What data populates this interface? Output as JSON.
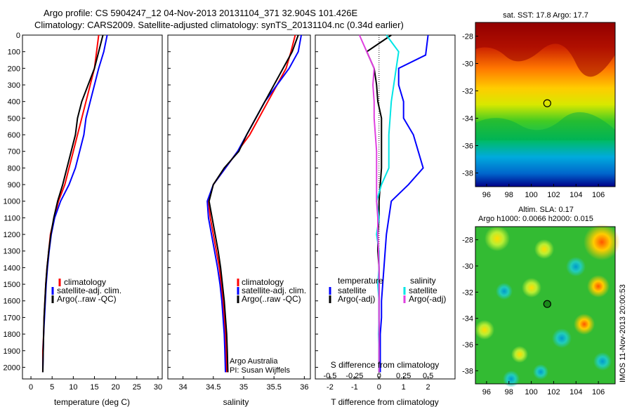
{
  "header": {
    "line1": "Argo profile: CS 5904247_12 04-Nov-2013 20131104_371 32.904S 101.426E",
    "line2": "Climatology: CARS2009. Satellite-adjusted climatology: synTS_20131104.nc (0.34d earlier)"
  },
  "side_text": "IMOS 11-Nov-2013 20:00:53",
  "colors": {
    "climatology": "#ff0000",
    "satellite": "#0000ff",
    "argo": "#000000",
    "salinity_satellite": "#00e5e5",
    "salinity_argo": "#e040e0"
  },
  "chart_data": [
    {
      "type": "line",
      "xlabel": "temperature (deg C)",
      "ylabel": "",
      "xlim": [
        -2,
        31
      ],
      "ylim": [
        2070,
        0
      ],
      "xticks": [
        "0",
        "5",
        "10",
        "15",
        "20",
        "25",
        "30"
      ],
      "yticks": [
        "0",
        "100",
        "200",
        "300",
        "400",
        "500",
        "600",
        "700",
        "800",
        "900",
        "1000",
        "1100",
        "1200",
        "1300",
        "1400",
        "1500",
        "1600",
        "1700",
        "1800",
        "1900",
        "2000"
      ],
      "legend": [
        "climatology",
        "satellite-adj. clim.",
        "Argo(..raw -QC)"
      ],
      "series": [
        {
          "name": "climatology",
          "x": [
            16,
            15.5,
            15,
            14,
            13,
            12,
            11,
            10,
            9,
            8,
            6.5,
            5.5,
            4.6,
            4.2,
            3.8,
            3.5,
            3.3,
            3.1,
            3.0,
            2.8,
            2.8
          ],
          "y": [
            0,
            100,
            200,
            300,
            400,
            500,
            600,
            700,
            800,
            900,
            1000,
            1100,
            1200,
            1300,
            1400,
            1500,
            1600,
            1700,
            1800,
            1900,
            2030
          ]
        },
        {
          "name": "satellite-adj. clim.",
          "x": [
            18,
            17.2,
            16,
            15,
            14,
            13,
            12.5,
            11.5,
            10.5,
            9,
            7,
            5.6,
            4.8,
            4.3,
            3.9,
            3.6,
            3.4,
            3.2,
            3.0,
            2.9,
            2.8
          ],
          "y": [
            0,
            100,
            200,
            300,
            400,
            500,
            600,
            700,
            800,
            900,
            1000,
            1100,
            1200,
            1300,
            1400,
            1500,
            1600,
            1700,
            1800,
            1900,
            2030
          ]
        },
        {
          "name": "Argo(..raw -QC)",
          "x": [
            17,
            16,
            15,
            13.5,
            12,
            11,
            10.5,
            9.5,
            8.5,
            7.5,
            6.3,
            5.4,
            4.7,
            4.2,
            3.8,
            3.5,
            3.3,
            3.1,
            3.0,
            2.9,
            2.8
          ],
          "y": [
            0,
            100,
            200,
            300,
            400,
            500,
            600,
            700,
            800,
            900,
            1000,
            1100,
            1200,
            1300,
            1400,
            1500,
            1600,
            1700,
            1800,
            1900,
            2030
          ]
        }
      ]
    },
    {
      "type": "line",
      "xlabel": "salinity",
      "ylabel": "",
      "xlim": [
        33.75,
        36.1
      ],
      "ylim": [
        2070,
        0
      ],
      "xticks": [
        "34",
        "34.5",
        "35",
        "35.5",
        "36"
      ],
      "legend": [
        "climatology",
        "satellite-adj. clim.",
        "Argo(..raw -QC)"
      ],
      "annotation": [
        "Argo Australia",
        "PI: Susan Wijffels"
      ],
      "series": [
        {
          "name": "climatology",
          "x": [
            35.85,
            35.78,
            35.7,
            35.55,
            35.4,
            35.25,
            35.1,
            34.9,
            34.7,
            34.5,
            34.42,
            34.45,
            34.5,
            34.55,
            34.6,
            34.63,
            34.66,
            34.68,
            34.7,
            34.71,
            34.72
          ],
          "y": [
            0,
            100,
            200,
            300,
            400,
            500,
            600,
            700,
            800,
            900,
            1000,
            1100,
            1200,
            1300,
            1400,
            1500,
            1600,
            1700,
            1800,
            1900,
            2030
          ]
        },
        {
          "name": "satellite-adj. clim.",
          "x": [
            35.95,
            35.9,
            35.75,
            35.55,
            35.35,
            35.2,
            35.05,
            34.9,
            34.7,
            34.5,
            34.4,
            34.42,
            34.47,
            34.52,
            34.57,
            34.61,
            34.64,
            34.66,
            34.68,
            34.69,
            34.7
          ],
          "y": [
            0,
            100,
            200,
            300,
            400,
            500,
            600,
            700,
            800,
            900,
            1000,
            1100,
            1200,
            1300,
            1400,
            1500,
            1600,
            1700,
            1800,
            1900,
            2030
          ]
        },
        {
          "name": "Argo(..raw -QC)",
          "x": [
            35.9,
            35.8,
            35.65,
            35.5,
            35.35,
            35.2,
            35.05,
            34.92,
            34.68,
            34.5,
            34.43,
            34.48,
            34.53,
            34.58,
            34.62,
            34.65,
            34.68,
            34.7,
            34.72,
            34.73,
            34.74
          ],
          "y": [
            0,
            100,
            200,
            300,
            400,
            500,
            600,
            700,
            800,
            900,
            1000,
            1100,
            1200,
            1300,
            1400,
            1500,
            1600,
            1700,
            1800,
            1900,
            2030
          ]
        }
      ]
    },
    {
      "type": "line",
      "xlabel": "T difference from climatology",
      "xlabel_top": "S difference from climatology",
      "ylim": [
        2070,
        0
      ],
      "xlim": [
        -2.6,
        3.1
      ],
      "xticks": [
        "-2",
        "-1",
        "0",
        "1",
        "2"
      ],
      "xticks_top": [
        "-0.5",
        "-0.25",
        "0",
        "0.25",
        "0.5"
      ],
      "legend_titles": [
        "temperature",
        "salinity"
      ],
      "legend_temperature": [
        "satellite",
        "Argo(-adj)"
      ],
      "legend_salinity": [
        "satellite",
        "Argo(-adj)"
      ],
      "series": [
        {
          "name": "temperature satellite",
          "x": [
            2.0,
            1.9,
            0.8,
            0.8,
            1.0,
            1.0,
            1.4,
            1.6,
            1.8,
            1.2,
            0.5,
            0.4,
            0.3,
            0.25,
            0.2,
            0.15,
            0.1,
            0.1,
            0.05,
            0.05,
            0.05
          ],
          "y": [
            0,
            120,
            200,
            300,
            400,
            500,
            600,
            700,
            800,
            900,
            1000,
            1100,
            1200,
            1300,
            1400,
            1500,
            1600,
            1700,
            1800,
            1900,
            2030
          ]
        },
        {
          "name": "temperature Argo(-adj)",
          "x": [
            0.5,
            -0.5,
            -0.2,
            -0.1,
            -0.05,
            0.1,
            0.1,
            0.1,
            0.1,
            0.05,
            0.0,
            0.0,
            -0.05,
            -0.05,
            0.0,
            0.0,
            0.0,
            0.0,
            0.0,
            0.0,
            0.0
          ],
          "y": [
            0,
            100,
            200,
            300,
            400,
            500,
            600,
            700,
            800,
            900,
            1000,
            1100,
            1200,
            1300,
            1400,
            1500,
            1600,
            1700,
            1800,
            1900,
            2030
          ]
        },
        {
          "name": "salinity satellite",
          "x": [
            0.3,
            0.8,
            0.7,
            0.6,
            0.5,
            0.45,
            0.4,
            0.4,
            0.4,
            0.1,
            -0.1,
            0.0,
            -0.1,
            0.0,
            0.0,
            -0.05,
            0.0,
            0.0,
            -0.02,
            0.0,
            0.0
          ],
          "y": [
            0,
            100,
            200,
            300,
            400,
            500,
            600,
            700,
            800,
            900,
            1000,
            1100,
            1200,
            1300,
            1400,
            1500,
            1600,
            1700,
            1800,
            1900,
            2030
          ]
        },
        {
          "name": "salinity Argo(-adj)",
          "x": [
            -0.8,
            -0.5,
            -0.2,
            -0.25,
            -0.2,
            -0.2,
            -0.15,
            -0.1,
            -0.1,
            -0.1,
            -0.1,
            -0.05,
            -0.05,
            -0.02,
            0.0,
            0.0,
            0.0,
            0.0,
            0.0,
            0.0,
            0.0
          ],
          "y": [
            0,
            100,
            200,
            300,
            400,
            500,
            600,
            700,
            800,
            900,
            1000,
            1100,
            1200,
            1300,
            1400,
            1500,
            1600,
            1700,
            1800,
            1900,
            2030
          ]
        }
      ]
    },
    {
      "type": "heatmap",
      "title": "sat. SST: 17.8  Argo: 17.7",
      "xlim": [
        95,
        107.5
      ],
      "ylim": [
        -39,
        -27
      ],
      "xticks": [
        "96",
        "98",
        "100",
        "102",
        "104",
        "106"
      ],
      "yticks": [
        "-28",
        "-30",
        "-32",
        "-34",
        "-36",
        "-38"
      ],
      "marker": {
        "lon": 101.426,
        "lat": -32.904
      }
    },
    {
      "type": "heatmap",
      "title": "Altim. SLA: 0.17",
      "subtitle": "Argo h1000: 0.0066  h2000: 0.015",
      "xlim": [
        95,
        107.5
      ],
      "ylim": [
        -39,
        -27
      ],
      "xticks": [
        "96",
        "98",
        "100",
        "102",
        "104",
        "106"
      ],
      "yticks": [
        "-28",
        "-30",
        "-32",
        "-34",
        "-36",
        "-38"
      ],
      "marker": {
        "lon": 101.426,
        "lat": -32.904
      }
    }
  ]
}
